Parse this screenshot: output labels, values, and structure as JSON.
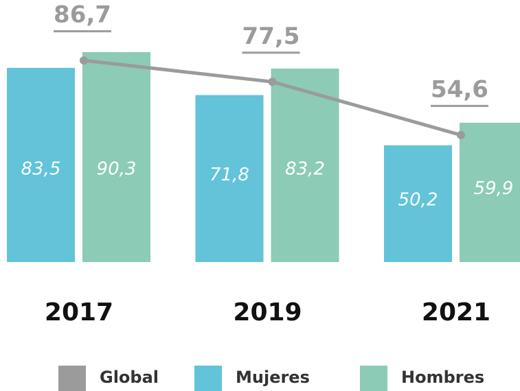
{
  "chart_data": {
    "type": "bar",
    "categories": [
      "2017",
      "2019",
      "2021"
    ],
    "series": [
      {
        "name": "Global",
        "type": "line",
        "color": "#9b9b9b",
        "values": [
          86.7,
          77.5,
          54.6
        ],
        "value_labels": [
          "86,7",
          "77,5",
          "54,6"
        ]
      },
      {
        "name": "Mujeres",
        "color": "#62c3d9",
        "values": [
          83.5,
          71.8,
          50.2
        ],
        "value_labels": [
          "83,5",
          "71,8",
          "50,2"
        ]
      },
      {
        "name": "Hombres",
        "color": "#8ccbb6",
        "values": [
          90.3,
          83.2,
          59.9
        ],
        "value_labels": [
          "90,3",
          "83,2",
          "59,9"
        ]
      }
    ]
  }
}
